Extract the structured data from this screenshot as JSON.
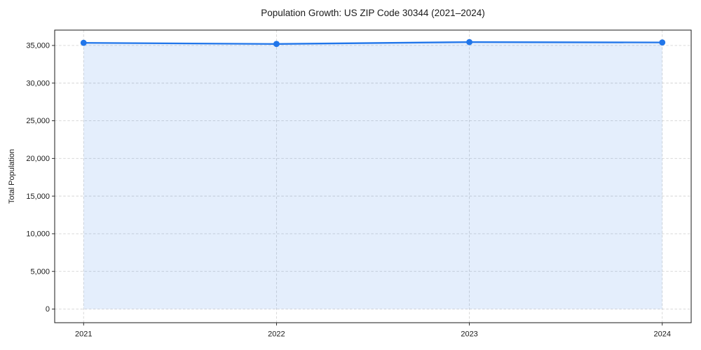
{
  "chart_data": {
    "type": "area",
    "title": "Population Growth: US ZIP Code 30344 (2021–2024)",
    "xlabel": "",
    "ylabel": "Total Population",
    "x": [
      2021,
      2022,
      2023,
      2024
    ],
    "xticklabels": [
      "2021",
      "2022",
      "2023",
      "2024"
    ],
    "series": [
      {
        "name": "Total Population",
        "values": [
          35350,
          35200,
          35450,
          35400
        ]
      }
    ],
    "yticks": [
      0,
      5000,
      10000,
      15000,
      20000,
      25000,
      30000,
      35000
    ],
    "yticklabels": [
      "0",
      "5,000",
      "10,000",
      "15,000",
      "20,000",
      "25,000",
      "30,000",
      "35,000"
    ],
    "ylim": [
      -1810,
      37040
    ],
    "xlim": [
      2020.85,
      2024.15
    ],
    "grid": true,
    "grid_style": "dashed",
    "legend": false,
    "fill_baseline": 0,
    "colors": {
      "line": "#2176ea",
      "marker": "#2176ea",
      "fill": "rgba(33,118,234,0.12)",
      "grid": "#d4d4d4",
      "spine": "#1a1a1a",
      "text": "#1a1a1a",
      "background": "#ffffff"
    }
  }
}
